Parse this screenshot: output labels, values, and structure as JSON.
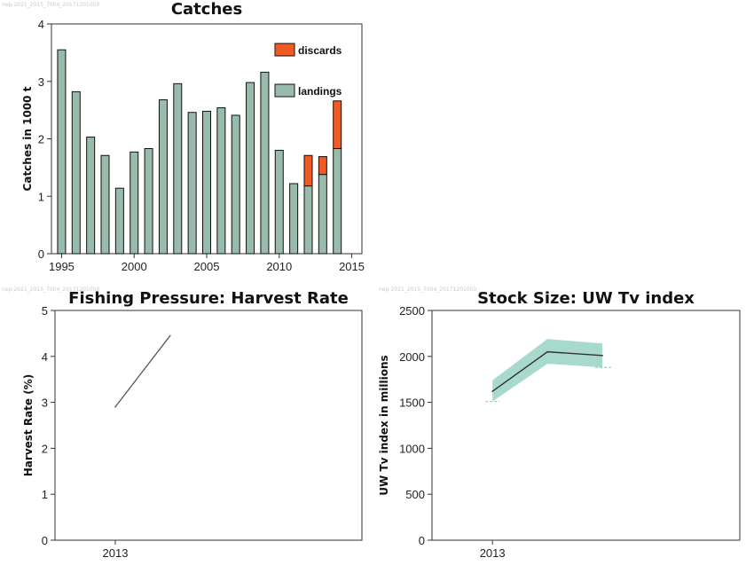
{
  "watermarks": {
    "catches": "nep-2021_2015_7004_20171201050",
    "harvest": "nep-2021_2015_7004_20171201050",
    "stock": "nep-2021_2015_7004_20171201050"
  },
  "colors": {
    "landings": "#98bbab",
    "discards": "#f15a22",
    "band": "#9dd5c6",
    "axis": "#333333"
  },
  "chart_data": [
    {
      "id": "catches",
      "type": "bar",
      "title": "Catches",
      "ylabel": "Catches in 1000 t",
      "xlabel": "",
      "xlim": [
        1994.3,
        2015.7
      ],
      "ylim": [
        0,
        4
      ],
      "x_ticks": [
        "1995",
        "2000",
        "2005",
        "2010",
        "2015"
      ],
      "y_ticks": [
        "0",
        "1",
        "2",
        "3",
        "4"
      ],
      "categories": [
        "1995",
        "1996",
        "1997",
        "1998",
        "1999",
        "2000",
        "2001",
        "2002",
        "2003",
        "2004",
        "2005",
        "2006",
        "2007",
        "2008",
        "2009",
        "2010",
        "2011",
        "2012",
        "2013",
        "2014"
      ],
      "series": [
        {
          "name": "landings",
          "values": [
            3.55,
            2.82,
            2.03,
            1.71,
            1.14,
            1.77,
            1.83,
            2.68,
            2.96,
            2.46,
            2.48,
            2.54,
            2.41,
            2.98,
            3.16,
            1.8,
            1.22,
            1.18,
            1.38,
            1.83
          ]
        },
        {
          "name": "discards",
          "values": [
            0,
            0,
            0,
            0,
            0,
            0,
            0,
            0,
            0,
            0,
            0,
            0,
            0,
            0,
            0,
            0,
            0,
            0.53,
            0.31,
            0.83
          ]
        }
      ],
      "legend": [
        "discards",
        "landings"
      ],
      "legend_position": "top-right",
      "stacked": true
    },
    {
      "id": "harvest",
      "type": "line",
      "title": "Fishing Pressure: Harvest Rate",
      "ylabel": "Harvest Rate (%)",
      "xlabel": "",
      "x_ticks": [
        "2013"
      ],
      "y_ticks": [
        "0",
        "1",
        "2",
        "3",
        "4",
        "5"
      ],
      "ylim": [
        0,
        5
      ],
      "xlim": [
        2011.9,
        2017.5
      ],
      "x": [
        2013,
        2014
      ],
      "values": [
        2.9,
        4.45
      ]
    },
    {
      "id": "stock",
      "type": "line",
      "title": "Stock Size: UW Tv index",
      "ylabel": "UW Tv index in millions",
      "xlabel": "",
      "x_ticks": [
        "2013"
      ],
      "y_ticks": [
        "0",
        "500",
        "1000",
        "1500",
        "2000",
        "2500"
      ],
      "ylim": [
        0,
        2500
      ],
      "xlim": [
        2011.9,
        2017.5
      ],
      "x": [
        2013,
        2014,
        2015
      ],
      "values": [
        1620,
        2050,
        2010
      ],
      "upper": [
        1740,
        2190,
        2140
      ],
      "lower": [
        1510,
        1920,
        1880
      ],
      "reference_levels": [
        1510,
        1880
      ]
    }
  ]
}
